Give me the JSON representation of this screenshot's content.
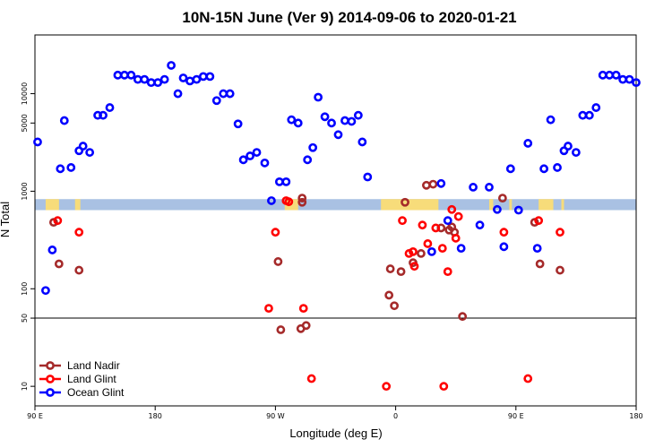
{
  "chart_data": {
    "type": "scatter",
    "title": "10N-15N June (Ver 9)   2014-09-06 to 2020-01-21",
    "xlabel": "Longitude (deg E)",
    "ylabel": "N Total",
    "x_scale": "linear",
    "y_scale": "log",
    "xlim": [
      90,
      540
    ],
    "ylim": [
      6.3,
      40000
    ],
    "x_ticks": [
      {
        "value": 90,
        "label": "90 E"
      },
      {
        "value": 180,
        "label": "180"
      },
      {
        "value": 270,
        "label": "90 W"
      },
      {
        "value": 360,
        "label": "0"
      },
      {
        "value": 450,
        "label": "90 E"
      },
      {
        "value": 540,
        "label": "180"
      }
    ],
    "y_ticks": [
      {
        "value": 10,
        "label": "10"
      },
      {
        "value": 50,
        "label": "50"
      },
      {
        "value": 100,
        "label": "100"
      },
      {
        "value": 1000,
        "label": "1000"
      },
      {
        "value": 5000,
        "label": "5000"
      },
      {
        "value": 10000,
        "label": "10000"
      }
    ],
    "reference_line": 50,
    "legend_position": "bottom-left",
    "land_strip": {
      "y_low": 640,
      "y_high": 830
    },
    "series": [
      {
        "name": "Land Nadir",
        "color": "#a52a2a",
        "points": [
          [
            104,
            480
          ],
          [
            108,
            180
          ],
          [
            123,
            155
          ],
          [
            272,
            190
          ],
          [
            274,
            38
          ],
          [
            290,
            850
          ],
          [
            290,
            770
          ],
          [
            289,
            39
          ],
          [
            293,
            42
          ],
          [
            355,
            86
          ],
          [
            356,
            160
          ],
          [
            359,
            67
          ],
          [
            364,
            150
          ],
          [
            367,
            770
          ],
          [
            373,
            185
          ],
          [
            379,
            230
          ],
          [
            383,
            1150
          ],
          [
            388,
            1180
          ],
          [
            394,
            420
          ],
          [
            400,
            400
          ],
          [
            402,
            430
          ],
          [
            404,
            380
          ],
          [
            410,
            52
          ],
          [
            440,
            850
          ],
          [
            464,
            480
          ],
          [
            468,
            180
          ],
          [
            483,
            155
          ]
        ]
      },
      {
        "name": "Land Glint",
        "color": "#ff0000",
        "points": [
          [
            107,
            500
          ],
          [
            123,
            380
          ],
          [
            265,
            63
          ],
          [
            270,
            380
          ],
          [
            291,
            63
          ],
          [
            297,
            12
          ],
          [
            278,
            800
          ],
          [
            280,
            780
          ],
          [
            353,
            10
          ],
          [
            365,
            500
          ],
          [
            370,
            230
          ],
          [
            373,
            240
          ],
          [
            374,
            170
          ],
          [
            380,
            450
          ],
          [
            384,
            290
          ],
          [
            390,
            420
          ],
          [
            395,
            260
          ],
          [
            396,
            10
          ],
          [
            399,
            150
          ],
          [
            402,
            650
          ],
          [
            405,
            330
          ],
          [
            407,
            550
          ],
          [
            441,
            380
          ],
          [
            459,
            12
          ],
          [
            467,
            500
          ],
          [
            483,
            380
          ]
        ]
      },
      {
        "name": "Ocean Glint",
        "color": "#0000ff",
        "points": [
          [
            92,
            3200
          ],
          [
            98,
            96
          ],
          [
            103,
            250
          ],
          [
            109,
            1700
          ],
          [
            112,
            5300
          ],
          [
            117,
            1750
          ],
          [
            123,
            2600
          ],
          [
            126,
            2900
          ],
          [
            131,
            2500
          ],
          [
            137,
            6000
          ],
          [
            141,
            6000
          ],
          [
            146,
            7200
          ],
          [
            152,
            15500
          ],
          [
            157,
            15500
          ],
          [
            162,
            15500
          ],
          [
            167,
            14000
          ],
          [
            172,
            14000
          ],
          [
            177,
            13000
          ],
          [
            182,
            13000
          ],
          [
            187,
            14000
          ],
          [
            192,
            19500
          ],
          [
            197,
            10000
          ],
          [
            201,
            14500
          ],
          [
            206,
            13500
          ],
          [
            211,
            14000
          ],
          [
            216,
            15000
          ],
          [
            221,
            15000
          ],
          [
            226,
            8500
          ],
          [
            231,
            10000
          ],
          [
            236,
            10000
          ],
          [
            242,
            4900
          ],
          [
            246,
            2100
          ],
          [
            251,
            2300
          ],
          [
            256,
            2500
          ],
          [
            262,
            1950
          ],
          [
            267,
            800
          ],
          [
            273,
            1250
          ],
          [
            278,
            1250
          ],
          [
            282,
            5400
          ],
          [
            287,
            5000
          ],
          [
            294,
            2100
          ],
          [
            298,
            2800
          ],
          [
            302,
            9200
          ],
          [
            307,
            5800
          ],
          [
            312,
            5000
          ],
          [
            317,
            3800
          ],
          [
            322,
            5300
          ],
          [
            327,
            5200
          ],
          [
            332,
            6000
          ],
          [
            335,
            3200
          ],
          [
            339,
            1400
          ],
          [
            387,
            240
          ],
          [
            394,
            1200
          ],
          [
            399,
            500
          ],
          [
            409,
            260
          ],
          [
            418,
            1100
          ],
          [
            423,
            450
          ],
          [
            430,
            1100
          ],
          [
            436,
            650
          ],
          [
            441,
            270
          ],
          [
            446,
            1700
          ],
          [
            452,
            640
          ],
          [
            459,
            3100
          ],
          [
            466,
            260
          ],
          [
            471,
            1700
          ],
          [
            476,
            5400
          ],
          [
            481,
            1750
          ],
          [
            486,
            2600
          ],
          [
            489,
            2900
          ],
          [
            495,
            2500
          ],
          [
            500,
            6000
          ],
          [
            505,
            6000
          ],
          [
            510,
            7200
          ],
          [
            515,
            15500
          ],
          [
            520,
            15500
          ],
          [
            525,
            15500
          ],
          [
            530,
            14000
          ],
          [
            535,
            14000
          ],
          [
            540,
            13000
          ]
        ]
      }
    ]
  }
}
